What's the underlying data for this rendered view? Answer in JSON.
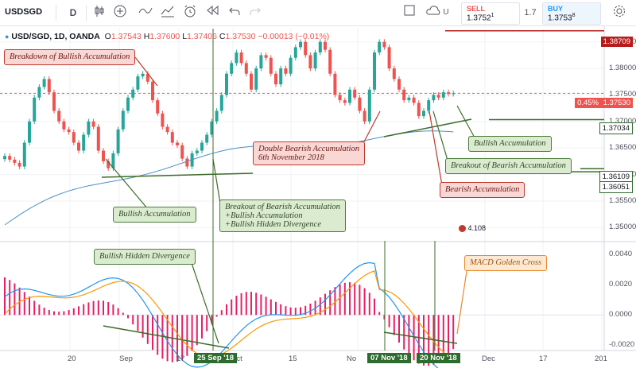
{
  "toolbar": {
    "symbol": "USDSGD",
    "interval": "D",
    "sell_label": "SELL",
    "sell_price": "1.3752",
    "sell_sup": "1",
    "spread": "1.7",
    "buy_label": "BUY",
    "buy_price": "1.3753",
    "buy_sup": "8",
    "partial_label": "U"
  },
  "legend": {
    "title": "USD/SGD, 1D, OANDA",
    "open_label": "O",
    "open": "1.37543",
    "high_label": "H",
    "high": "1.37600",
    "low_label": "L",
    "low": "1.37406",
    "close_label": "C",
    "close": "1.37530",
    "change": "−0.00013 (−0.01%)"
  },
  "price_axis": {
    "ticks": [
      "1.38500",
      "1.38000",
      "1.37500",
      "1.37000",
      "1.36500",
      "1.36000",
      "1.35500",
      "1.35000"
    ],
    "marked": [
      {
        "value": "1.38709",
        "color": "#b71c1c"
      },
      {
        "value": "1.37530",
        "color": "#ef5350",
        "prefix": "0.45%"
      },
      {
        "value": "1.37034",
        "color": "#2e6b2e"
      },
      {
        "value": "1.36109",
        "color": "#2e6b2e"
      },
      {
        "value": "1.36051",
        "color": "#2e6b2e"
      }
    ]
  },
  "macd_axis": {
    "ticks": [
      "0.0040",
      "0.0020",
      "0.0000",
      "-0.0020"
    ]
  },
  "time_axis": {
    "ticks": [
      "20",
      "Sep",
      "17",
      "Oct",
      "15",
      "No",
      "Dec",
      "17",
      "201"
    ],
    "highlighted": [
      "25 Sep '18",
      "07 Nov '18",
      "20 Nov '18"
    ]
  },
  "callouts": {
    "breakdown": "Breakdown of Bullish Accumulation",
    "bullish_accum_left": "Bullish Accumulation",
    "breakout_left_1": "Breakout of Bearish Accumulation",
    "breakout_left_2": "+Bullish Accumulation",
    "breakout_left_3": "+Bullish Hidden Divergence",
    "double_bearish_1": "Double Bearish Accumulation",
    "double_bearish_2": "6th November 2018",
    "bullish_accum_right": "Bullish Accumulation",
    "breakout_right": "Breakout of Bearish Accumulation",
    "bearish_accum": "Bearish Accumulation",
    "hidden_div": "Bullish Hidden Divergence",
    "golden_cross": "MACD Golden Cross"
  },
  "badge": {
    "value": "4.108"
  },
  "colors": {
    "up": "#26a69a",
    "down": "#ef5350",
    "ma": "#4a90c2",
    "macd": "#2196f3",
    "signal": "#ff9800",
    "hist": "#e91e63",
    "annotation": "#3d6b2a"
  }
}
